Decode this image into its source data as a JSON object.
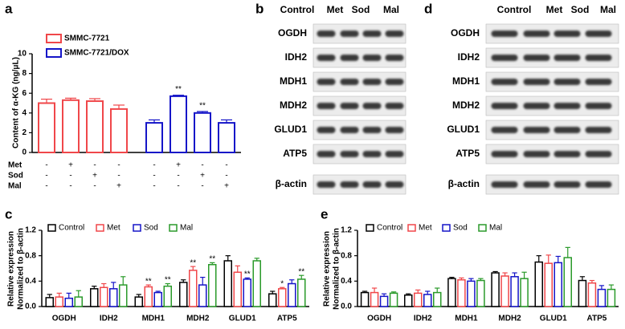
{
  "chart_data": [
    {
      "type": "bar",
      "panel": "a",
      "ylabel": [
        "Content of α-KG (ng/μL)"
      ],
      "categories": [
        null,
        null,
        null,
        null,
        null,
        null,
        null,
        null
      ],
      "ylim": [
        0,
        10
      ],
      "yticks": [
        0,
        2,
        4,
        6,
        8,
        10
      ],
      "series": [
        {
          "name": "SMMC-7721",
          "color": "#f0474a",
          "values": [
            5.0,
            5.3,
            5.2,
            4.4,
            null,
            null,
            null,
            null
          ],
          "errors": [
            0.4,
            0.2,
            0.25,
            0.4,
            null,
            null,
            null,
            null
          ],
          "significance": [
            null,
            null,
            null,
            null,
            null,
            null,
            null,
            null
          ]
        },
        {
          "name": "SMMC-7721/DOX",
          "color": "#1515c8",
          "values": [
            null,
            null,
            null,
            null,
            3.0,
            5.7,
            4.0,
            3.0
          ],
          "errors": [
            null,
            null,
            null,
            null,
            0.3,
            0.1,
            0.15,
            0.3
          ],
          "significance": [
            null,
            null,
            null,
            null,
            null,
            "**",
            "**",
            null
          ]
        }
      ],
      "treatments": [
        {
          "name": "Met",
          "signs": [
            "-",
            "+",
            "-",
            "-",
            "-",
            "+",
            "-",
            "-"
          ]
        },
        {
          "name": "Sod",
          "signs": [
            "-",
            "-",
            "+",
            "-",
            "-",
            "-",
            "+",
            "-"
          ]
        },
        {
          "name": "Mal",
          "signs": [
            "-",
            "-",
            "-",
            "+",
            "-",
            "-",
            "-",
            "+"
          ]
        }
      ]
    },
    {
      "type": "bar",
      "panel": "c",
      "ylabel": [
        "Relative expression",
        "Normalized to β-actin"
      ],
      "categories": [
        "OGDH",
        "IDH2",
        "MDH1",
        "MDH2",
        "GLUD1",
        "ATP5"
      ],
      "ylim": [
        0,
        1.2
      ],
      "yticks": [
        {
          "value": 0,
          "label": "0.0"
        },
        0.4,
        0.8,
        1.2
      ],
      "series": [
        {
          "name": "Control",
          "color": "#000000",
          "values": [
            0.14,
            0.28,
            0.15,
            0.38,
            0.72,
            0.2
          ],
          "errors": [
            0.05,
            0.04,
            0.04,
            0.04,
            0.08,
            0.04
          ],
          "significance": [
            null,
            null,
            null,
            null,
            null,
            null
          ]
        },
        {
          "name": "Met",
          "color": "#f0474a",
          "values": [
            0.15,
            0.3,
            0.31,
            0.57,
            0.54,
            0.28
          ],
          "errors": [
            0.06,
            0.06,
            0.03,
            0.06,
            0.1,
            0.02
          ],
          "significance": [
            null,
            null,
            "**",
            "**",
            null,
            "*"
          ]
        },
        {
          "name": "Sod",
          "color": "#1515c8",
          "values": [
            0.13,
            0.28,
            0.22,
            0.34,
            0.43,
            0.36
          ],
          "errors": [
            0.08,
            0.1,
            0.02,
            0.12,
            0.02,
            0.06
          ],
          "significance": [
            null,
            null,
            null,
            null,
            "**",
            null
          ]
        },
        {
          "name": "Mal",
          "color": "#2a9a2a",
          "values": [
            0.15,
            0.34,
            0.32,
            0.66,
            0.72,
            0.43
          ],
          "errors": [
            0.1,
            0.13,
            0.04,
            0.03,
            0.04,
            0.06
          ],
          "significance": [
            null,
            null,
            "**",
            "**",
            null,
            "**"
          ]
        }
      ]
    },
    {
      "type": "bar",
      "panel": "e",
      "ylabel": [
        "Relative expression",
        "Normalized to β-actin"
      ],
      "categories": [
        "OGDH",
        "IDH2",
        "MDH1",
        "MDH2",
        "GLUD1",
        "ATP5"
      ],
      "ylim": [
        0,
        1.2
      ],
      "yticks": [
        {
          "value": 0,
          "label": "0.0"
        },
        0.4,
        0.8,
        1.2
      ],
      "series": [
        {
          "name": "Control",
          "color": "#000000",
          "values": [
            0.22,
            0.18,
            0.44,
            0.53,
            0.7,
            0.41
          ],
          "errors": [
            0.02,
            0.02,
            0.02,
            0.02,
            0.1,
            0.06
          ],
          "significance": [
            null,
            null,
            null,
            null,
            null,
            null
          ]
        },
        {
          "name": "Met",
          "color": "#f0474a",
          "values": [
            0.22,
            0.21,
            0.42,
            0.48,
            0.68,
            0.37
          ],
          "errors": [
            0.07,
            0.05,
            0.03,
            0.05,
            0.13,
            0.04
          ],
          "significance": [
            null,
            null,
            null,
            null,
            null,
            null
          ]
        },
        {
          "name": "Sod",
          "color": "#1515c8",
          "values": [
            0.16,
            0.19,
            0.4,
            0.47,
            0.69,
            0.27
          ],
          "errors": [
            0.04,
            0.05,
            0.04,
            0.06,
            0.1,
            0.06
          ],
          "significance": [
            null,
            null,
            null,
            null,
            null,
            null
          ]
        },
        {
          "name": "Mal",
          "color": "#2a9a2a",
          "values": [
            0.21,
            0.22,
            0.41,
            0.44,
            0.77,
            0.27
          ],
          "errors": [
            0.02,
            0.07,
            0.03,
            0.1,
            0.16,
            0.07
          ],
          "significance": [
            null,
            null,
            null,
            null,
            null,
            null
          ]
        }
      ]
    }
  ],
  "blots": [
    {
      "panel": "b",
      "lanes": [
        "Control",
        "Met",
        "Sod",
        "Mal"
      ],
      "proteins": [
        "OGDH",
        "IDH2",
        "MDH1",
        "MDH2",
        "GLUD1",
        "ATP5",
        "β-actin"
      ]
    },
    {
      "panel": "d",
      "lanes": [
        "Control",
        "Met",
        "Sod",
        "Mal"
      ],
      "proteins": [
        "OGDH",
        "IDH2",
        "MDH1",
        "MDH2",
        "GLUD1",
        "ATP5",
        "β-actin"
      ]
    }
  ]
}
